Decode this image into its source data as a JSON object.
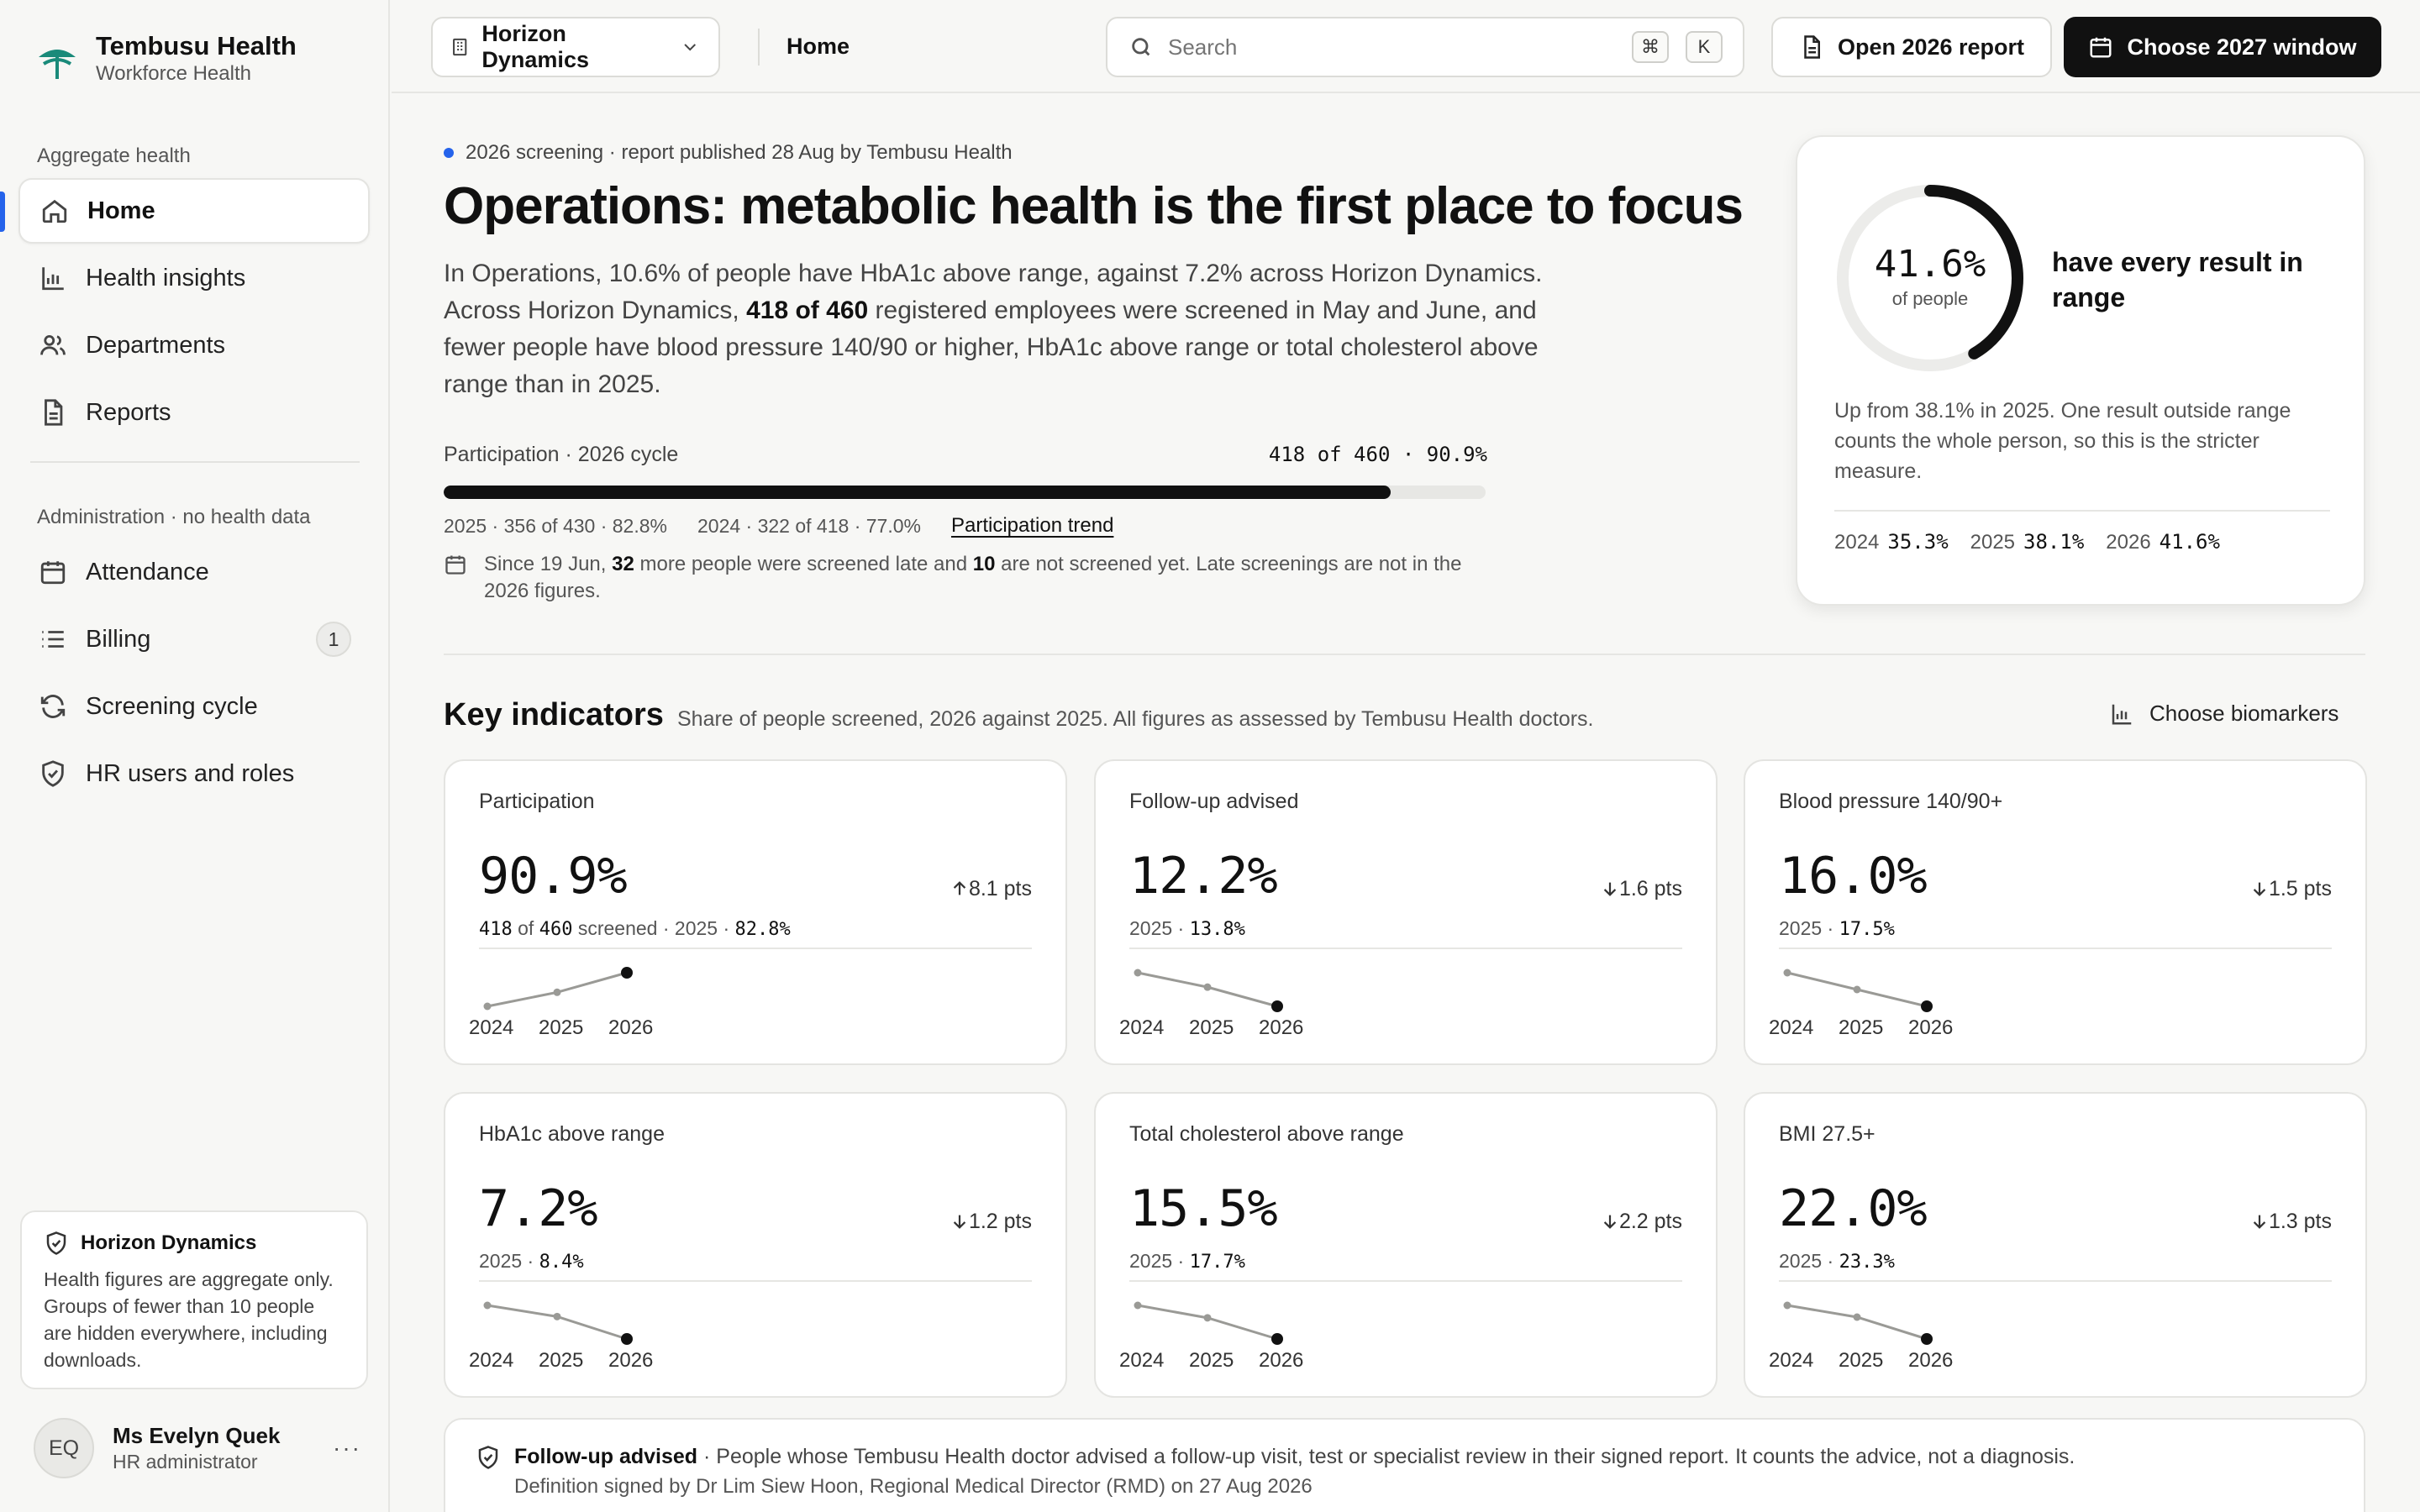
{
  "brand": {
    "name": "Tembusu Health",
    "sub": "Workforce Health",
    "accent": "#1a8a7a"
  },
  "sidebar": {
    "section1": "Aggregate health",
    "items1": [
      {
        "label": "Home",
        "icon": "home-icon"
      },
      {
        "label": "Health insights",
        "icon": "bar-chart-icon"
      },
      {
        "label": "Departments",
        "icon": "users-icon"
      },
      {
        "label": "Reports",
        "icon": "document-icon"
      }
    ],
    "section2": "Administration · no health data",
    "items2": [
      {
        "label": "Attendance",
        "icon": "calendar-icon"
      },
      {
        "label": "Billing",
        "icon": "list-icon",
        "badge": "1"
      },
      {
        "label": "Screening cycle",
        "icon": "refresh-icon"
      },
      {
        "label": "HR users and roles",
        "icon": "shield-icon"
      }
    ],
    "privacy": {
      "title": "Horizon Dynamics",
      "body": "Health figures are aggregate only. Groups of fewer than 10 people are hidden everywhere, including downloads."
    },
    "user": {
      "initials": "EQ",
      "name": "Ms Evelyn Quek",
      "role": "HR administrator",
      "more": "···"
    }
  },
  "topbar": {
    "org": "Horizon Dynamics",
    "breadcrumb": "Home",
    "search_placeholder": "Search",
    "kbd1": "⌘",
    "kbd2": "K",
    "btn_report": "Open 2026 report",
    "btn_window": "Choose 2027 window"
  },
  "hero": {
    "eyebrow": "2026 screening · report published 28 Aug by Tembusu Health",
    "title": "Operations: metabolic health is the first place to focus",
    "p_part1": "In Operations, 10.6% of people have HbA1c above range, against 7.2% across Horizon Dynamics. Across Horizon Dynamics, ",
    "p_bold": "418 of 460",
    "p_part2": " registered employees were screened in May and June, and fewer people have blood pressure 140/90 or higher, HbA1c above range or total cholesterol above range than in 2025.",
    "participation_label": "Participation · 2026 cycle",
    "participation_value": "418 of 460 · 90.9%",
    "participation_fraction": 0.909,
    "hist_2025": "2025 · 356 of 430 · 82.8%",
    "hist_2024": "2024 · 322 of 418 · 77.0%",
    "trend_link": "Participation trend",
    "note_a": "Since 19 Jun, ",
    "note_b1": "32",
    "note_c": " more people were screened late and ",
    "note_b2": "10",
    "note_d": " are not screened yet. Late screenings are not in the 2026 figures."
  },
  "score": {
    "value": "41.6%",
    "fraction": 0.416,
    "sub": "of people",
    "label": "have every result in range",
    "text": "Up from 38.1% in 2025. One result outside range counts the whole person, so this is the stricter measure.",
    "history": [
      {
        "year": "2024",
        "value": "35.3%"
      },
      {
        "year": "2025",
        "value": "38.1%"
      },
      {
        "year": "2026",
        "value": "41.6%"
      }
    ]
  },
  "indicators": {
    "title": "Key indicators",
    "sub": "Share of people screened, 2026 against 2025. All figures as assessed by Tembusu Health doctors.",
    "choose": "Choose biomarkers",
    "cards": [
      {
        "title": "Participation",
        "value": "90.9%",
        "delta": "8.1 pts",
        "dir": "up",
        "sub_a": "418",
        "sub_b": " of ",
        "sub_c": "460",
        "sub_d": " screened · 2025 · ",
        "sub_e": "82.8%",
        "years": [
          "2024",
          "2025",
          "2026"
        ],
        "trend": [
          77.0,
          82.8,
          90.9
        ]
      },
      {
        "title": "Follow-up advised",
        "value": "12.2%",
        "delta": "1.6 pts",
        "dir": "down",
        "sub_label": "2025 · ",
        "sub_prev": "13.8%",
        "years": [
          "2024",
          "2025",
          "2026"
        ],
        "trend": [
          15.0,
          13.8,
          12.2
        ]
      },
      {
        "title": "Blood pressure 140/90+",
        "value": "16.0%",
        "delta": "1.5 pts",
        "dir": "down",
        "sub_label": "2025 · ",
        "sub_prev": "17.5%",
        "years": [
          "2024",
          "2025",
          "2026"
        ],
        "trend": [
          19.0,
          17.5,
          16.0
        ]
      },
      {
        "title": "HbA1c above range",
        "value": "7.2%",
        "delta": "1.2 pts",
        "dir": "down",
        "sub_label": "2025 · ",
        "sub_prev": "8.4%",
        "years": [
          "2024",
          "2025",
          "2026"
        ],
        "trend": [
          9.0,
          8.4,
          7.2
        ]
      },
      {
        "title": "Total cholesterol above range",
        "value": "15.5%",
        "delta": "2.2 pts",
        "dir": "down",
        "sub_label": "2025 · ",
        "sub_prev": "17.7%",
        "years": [
          "2024",
          "2025",
          "2026"
        ],
        "trend": [
          19.0,
          17.7,
          15.5
        ]
      },
      {
        "title": "BMI 27.5+",
        "value": "22.0%",
        "delta": "1.3 pts",
        "dir": "down",
        "sub_label": "2025 · ",
        "sub_prev": "23.3%",
        "years": [
          "2024",
          "2025",
          "2026"
        ],
        "trend": [
          24.0,
          23.3,
          22.0
        ]
      }
    ]
  },
  "definition": {
    "term": "Follow-up advised",
    "text": " · People whose Tembusu Health doctor advised a follow-up visit, test or specialist review in their signed report. It counts the advice, not a diagnosis.",
    "signed": "Definition signed by Dr Lim Siew Hoon, Regional Medical Director (RMD) on 27 Aug 2026"
  }
}
